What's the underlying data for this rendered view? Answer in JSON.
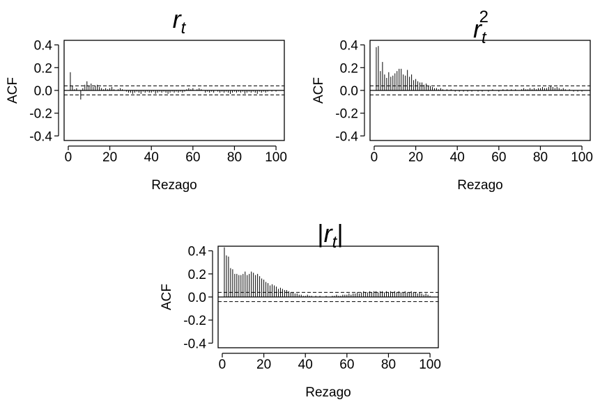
{
  "chart_data": [
    {
      "type": "bar",
      "title": "r",
      "title_subscript": "t",
      "title_superscript": "",
      "title_bars": false,
      "xlabel": "Rezago",
      "ylabel": "ACF",
      "xlim": [
        -2,
        104
      ],
      "ylim": [
        -0.44,
        0.44
      ],
      "xticks": [
        0,
        20,
        40,
        60,
        80,
        100
      ],
      "yticks": [
        -0.4,
        -0.2,
        0.0,
        0.2,
        0.4
      ],
      "ytick_labels": [
        "-0.4",
        "-0.2",
        "0.0",
        "0.2",
        "0.4"
      ],
      "confidence_band": 0.04,
      "lags": [
        1,
        2,
        3,
        4,
        5,
        6,
        7,
        8,
        9,
        10,
        11,
        12,
        13,
        14,
        15,
        16,
        17,
        18,
        19,
        20,
        21,
        22,
        23,
        24,
        25,
        26,
        27,
        28,
        29,
        30,
        31,
        32,
        33,
        34,
        35,
        36,
        37,
        38,
        39,
        40,
        41,
        42,
        43,
        44,
        45,
        46,
        47,
        48,
        49,
        50,
        51,
        52,
        53,
        54,
        55,
        56,
        57,
        58,
        59,
        60,
        61,
        62,
        63,
        64,
        65,
        66,
        67,
        68,
        69,
        70,
        71,
        72,
        73,
        74,
        75,
        76,
        77,
        78,
        79,
        80,
        81,
        82,
        83,
        84,
        85,
        86,
        87,
        88,
        89,
        90,
        91,
        92,
        93,
        94,
        95,
        96,
        97,
        98,
        99,
        100
      ],
      "values": [
        0.16,
        0.04,
        0.01,
        0.02,
        0.0,
        -0.08,
        0.02,
        0.05,
        0.08,
        0.04,
        0.06,
        0.03,
        0.04,
        0.05,
        0.03,
        0.02,
        0.01,
        0.02,
        0.01,
        0.02,
        0.03,
        0.01,
        0.0,
        0.01,
        0.02,
        0.01,
        0.0,
        -0.01,
        -0.02,
        -0.02,
        -0.03,
        -0.02,
        -0.01,
        -0.02,
        -0.03,
        -0.01,
        -0.02,
        -0.01,
        -0.02,
        -0.02,
        -0.01,
        -0.03,
        -0.02,
        -0.01,
        -0.02,
        -0.01,
        -0.02,
        -0.03,
        -0.02,
        -0.01,
        -0.02,
        -0.01,
        -0.02,
        -0.01,
        -0.02,
        -0.01,
        0.01,
        0.02,
        0.01,
        0.02,
        0.0,
        0.01,
        0.02,
        0.01,
        0.0,
        -0.02,
        -0.01,
        -0.02,
        -0.01,
        -0.02,
        0.0,
        -0.01,
        -0.02,
        -0.01,
        -0.02,
        -0.01,
        -0.02,
        -0.03,
        -0.02,
        -0.01,
        -0.02,
        -0.01,
        -0.02,
        -0.01,
        -0.03,
        -0.02,
        -0.01,
        -0.02,
        -0.01,
        -0.02,
        -0.03,
        -0.01,
        -0.02,
        -0.01,
        -0.02,
        -0.01,
        0.0,
        -0.01,
        0.0,
        -0.01
      ]
    },
    {
      "type": "bar",
      "title": "r",
      "title_subscript": "t",
      "title_superscript": "2",
      "title_bars": false,
      "xlabel": "Rezago",
      "ylabel": "ACF",
      "xlim": [
        -2,
        104
      ],
      "ylim": [
        -0.44,
        0.44
      ],
      "xticks": [
        0,
        20,
        40,
        60,
        80,
        100
      ],
      "yticks": [
        -0.4,
        -0.2,
        0.0,
        0.2,
        0.4
      ],
      "ytick_labels": [
        "-0.4",
        "-0.2",
        "0.0",
        "0.2",
        "0.4"
      ],
      "confidence_band": 0.04,
      "lags": [
        1,
        2,
        3,
        4,
        5,
        6,
        7,
        8,
        9,
        10,
        11,
        12,
        13,
        14,
        15,
        16,
        17,
        18,
        19,
        20,
        21,
        22,
        23,
        24,
        25,
        26,
        27,
        28,
        29,
        30,
        31,
        32,
        33,
        34,
        35,
        36,
        37,
        38,
        39,
        40,
        41,
        42,
        43,
        44,
        45,
        46,
        47,
        48,
        49,
        50,
        51,
        52,
        53,
        54,
        55,
        56,
        57,
        58,
        59,
        60,
        61,
        62,
        63,
        64,
        65,
        66,
        67,
        68,
        69,
        70,
        71,
        72,
        73,
        74,
        75,
        76,
        77,
        78,
        79,
        80,
        81,
        82,
        83,
        84,
        85,
        86,
        87,
        88,
        89,
        90,
        91,
        92,
        93,
        94,
        95,
        96,
        97,
        98,
        99,
        100
      ],
      "values": [
        0.38,
        0.39,
        0.17,
        0.25,
        0.14,
        0.11,
        0.16,
        0.12,
        0.13,
        0.15,
        0.17,
        0.19,
        0.19,
        0.14,
        0.13,
        0.18,
        0.12,
        0.14,
        0.09,
        0.1,
        0.08,
        0.07,
        0.07,
        0.05,
        0.06,
        0.04,
        0.04,
        0.03,
        0.02,
        0.02,
        0.01,
        0.02,
        0.01,
        0.0,
        0.01,
        0.0,
        0.01,
        0.0,
        -0.01,
        0.0,
        -0.01,
        0.0,
        -0.01,
        0.0,
        -0.01,
        0.0,
        -0.01,
        0.0,
        0.0,
        -0.01,
        0.0,
        -0.01,
        0.0,
        0.0,
        -0.01,
        0.0,
        0.01,
        0.0,
        0.0,
        -0.01,
        0.0,
        0.01,
        0.0,
        0.01,
        0.0,
        0.01,
        0.0,
        0.01,
        0.0,
        0.0,
        0.01,
        0.02,
        0.01,
        0.01,
        0.02,
        0.01,
        0.02,
        0.01,
        0.02,
        0.02,
        0.03,
        0.02,
        0.02,
        0.03,
        0.04,
        0.03,
        0.02,
        0.03,
        0.02,
        0.01,
        0.02,
        0.01,
        0.0,
        0.01,
        0.0,
        -0.01,
        0.0,
        -0.01,
        0.0,
        -0.01
      ]
    },
    {
      "type": "bar",
      "title": "r",
      "title_subscript": "t",
      "title_superscript": "",
      "title_bars": true,
      "xlabel": "Rezago",
      "ylabel": "ACF",
      "xlim": [
        -2,
        104
      ],
      "ylim": [
        -0.44,
        0.44
      ],
      "xticks": [
        0,
        20,
        40,
        60,
        80,
        100
      ],
      "yticks": [
        -0.4,
        -0.2,
        0.0,
        0.2,
        0.4
      ],
      "ytick_labels": [
        "-0.4",
        "-0.2",
        "0.0",
        "0.2",
        "0.4"
      ],
      "confidence_band": 0.04,
      "lags": [
        1,
        2,
        3,
        4,
        5,
        6,
        7,
        8,
        9,
        10,
        11,
        12,
        13,
        14,
        15,
        16,
        17,
        18,
        19,
        20,
        21,
        22,
        23,
        24,
        25,
        26,
        27,
        28,
        29,
        30,
        31,
        32,
        33,
        34,
        35,
        36,
        37,
        38,
        39,
        40,
        41,
        42,
        43,
        44,
        45,
        46,
        47,
        48,
        49,
        50,
        51,
        52,
        53,
        54,
        55,
        56,
        57,
        58,
        59,
        60,
        61,
        62,
        63,
        64,
        65,
        66,
        67,
        68,
        69,
        70,
        71,
        72,
        73,
        74,
        75,
        76,
        77,
        78,
        79,
        80,
        81,
        82,
        83,
        84,
        85,
        86,
        87,
        88,
        89,
        90,
        91,
        92,
        93,
        94,
        95,
        96,
        97,
        98,
        99,
        100
      ],
      "values": [
        0.43,
        0.36,
        0.35,
        0.25,
        0.24,
        0.2,
        0.2,
        0.19,
        0.19,
        0.2,
        0.22,
        0.19,
        0.2,
        0.22,
        0.21,
        0.19,
        0.2,
        0.18,
        0.16,
        0.15,
        0.13,
        0.12,
        0.1,
        0.11,
        0.1,
        0.09,
        0.07,
        0.08,
        0.07,
        0.06,
        0.06,
        0.05,
        0.04,
        0.04,
        0.03,
        0.03,
        0.02,
        0.02,
        0.01,
        0.01,
        0.02,
        0.01,
        0.01,
        0.0,
        0.01,
        0.0,
        0.01,
        0.0,
        0.0,
        0.01,
        0.0,
        0.0,
        0.01,
        0.01,
        0.02,
        0.01,
        0.01,
        0.02,
        0.02,
        0.02,
        0.03,
        0.02,
        0.03,
        0.03,
        0.04,
        0.03,
        0.04,
        0.05,
        0.04,
        0.04,
        0.05,
        0.04,
        0.05,
        0.05,
        0.04,
        0.05,
        0.05,
        0.04,
        0.05,
        0.04,
        0.05,
        0.04,
        0.05,
        0.04,
        0.05,
        0.04,
        0.04,
        0.05,
        0.04,
        0.04,
        0.05,
        0.04,
        0.04,
        0.03,
        0.04,
        0.03,
        0.02,
        0.03,
        0.02,
        0.01
      ]
    }
  ]
}
